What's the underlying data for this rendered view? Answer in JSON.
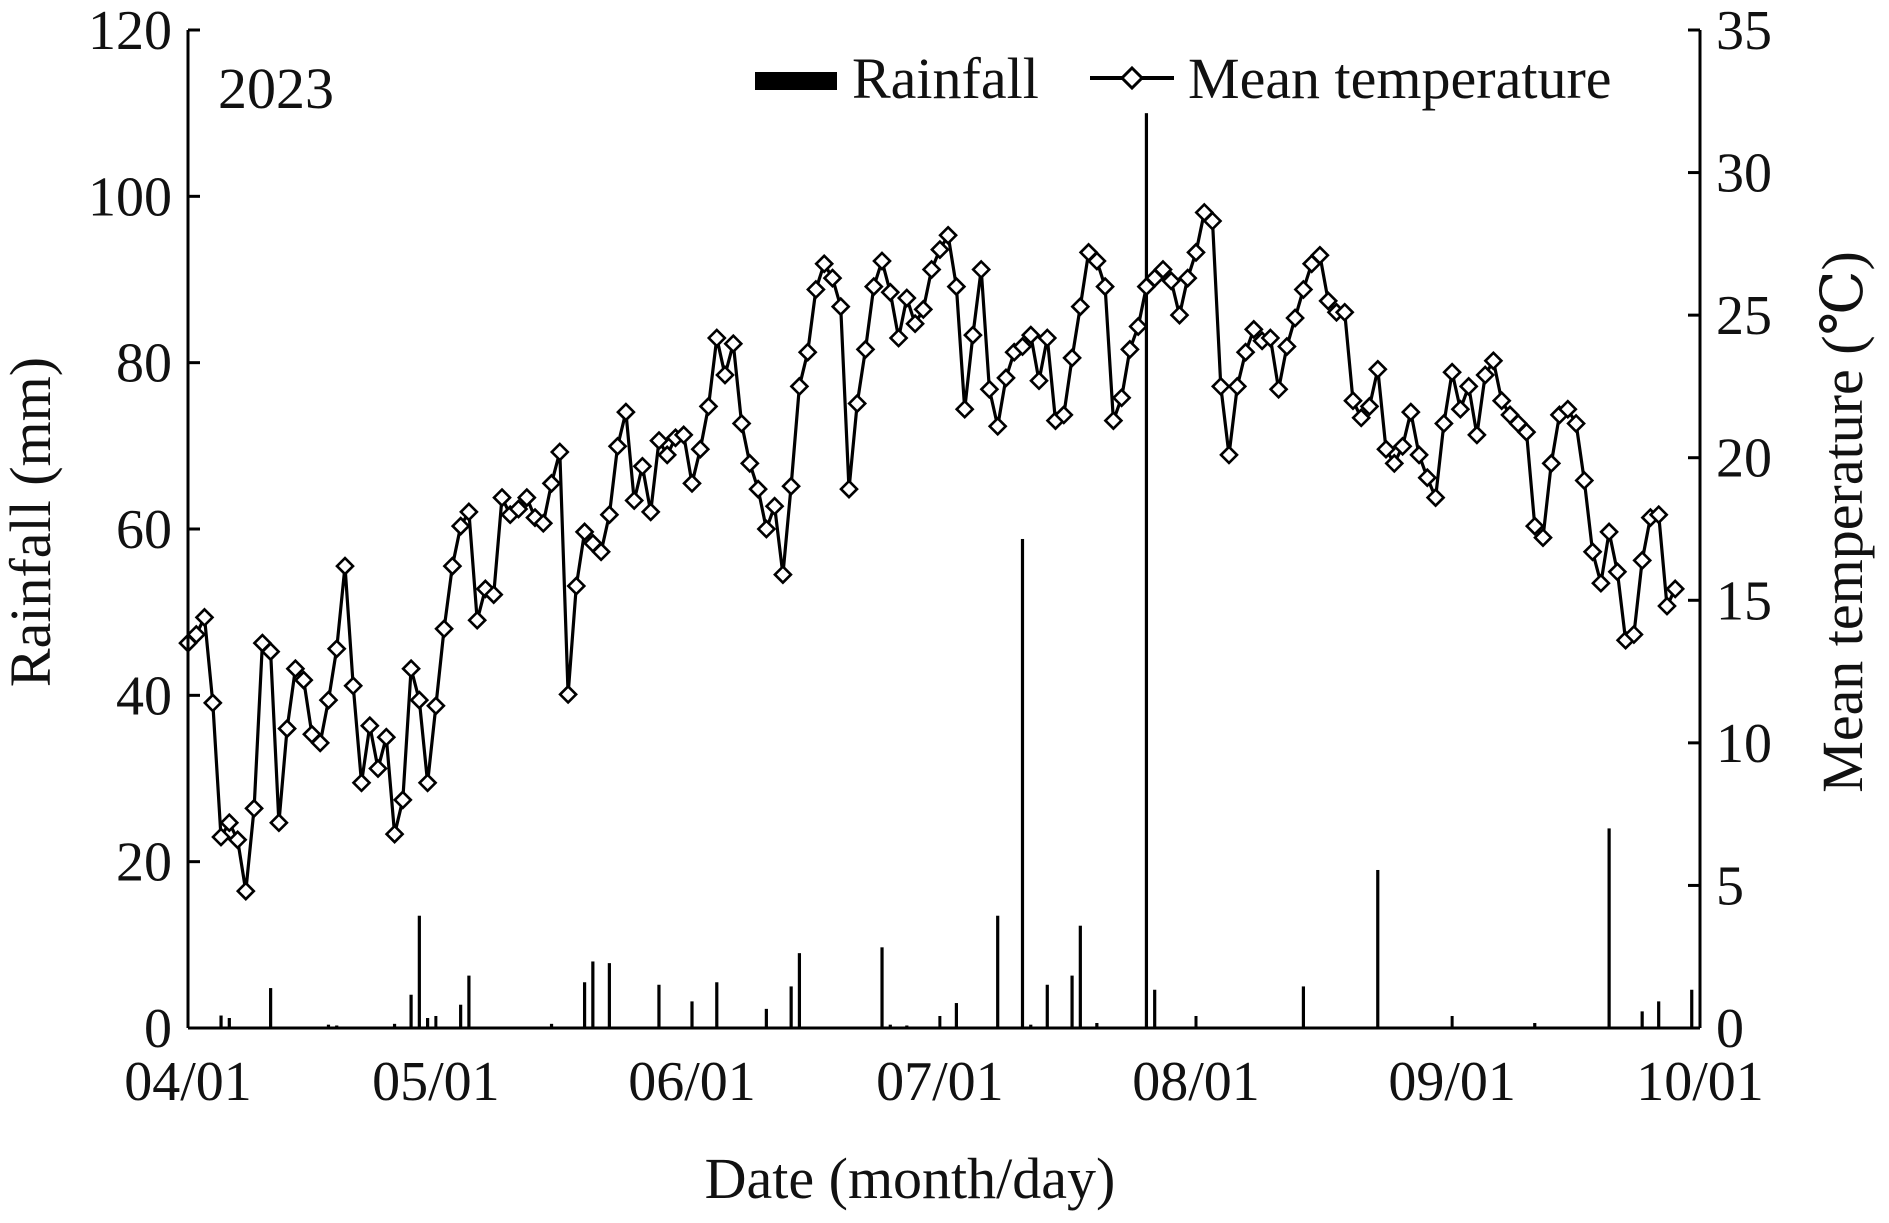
{
  "chart_data": {
    "type": "bar+line",
    "panel_label": "2023",
    "xlabel": "Date (month/day)",
    "ylabel_left": "Rainfall (mm)",
    "ylabel_right": "Mean temperature (℃)",
    "x_range": [
      "04/01",
      "10/01"
    ],
    "x_ticks": [
      "04/01",
      "05/01",
      "06/01",
      "07/01",
      "08/01",
      "09/01",
      "10/01"
    ],
    "ylim_left": [
      0,
      120
    ],
    "yticks_left": [
      0,
      20,
      40,
      60,
      80,
      100,
      120
    ],
    "ylim_right": [
      0,
      35
    ],
    "yticks_right": [
      0,
      5,
      10,
      15,
      20,
      25,
      30,
      35
    ],
    "grid": false,
    "legend_position": "top-right",
    "colors": {
      "bars": "#000000",
      "line": "#000000",
      "marker_fill": "#ffffff"
    },
    "legend": [
      {
        "label": "Rainfall",
        "symbol": "bar"
      },
      {
        "label": "Mean temperature",
        "symbol": "line-diamond"
      }
    ],
    "series": [
      {
        "name": "Rainfall",
        "axis": "left",
        "kind": "bar",
        "points": [
          [
            "04/05",
            1.5
          ],
          [
            "04/06",
            1.2
          ],
          [
            "04/11",
            4.8
          ],
          [
            "04/18",
            0.4
          ],
          [
            "04/19",
            0.3
          ],
          [
            "04/26",
            0.5
          ],
          [
            "04/28",
            4.0
          ],
          [
            "04/29",
            13.5
          ],
          [
            "04/30",
            1.2
          ],
          [
            "05/04",
            2.8
          ],
          [
            "05/05",
            6.3
          ],
          [
            "05/15",
            0.5
          ],
          [
            "05/19",
            5.5
          ],
          [
            "05/20",
            8.0
          ],
          [
            "05/22",
            7.8
          ],
          [
            "05/28",
            5.2
          ],
          [
            "06/01",
            3.2
          ],
          [
            "06/04",
            5.5
          ],
          [
            "06/10",
            2.3
          ],
          [
            "06/13",
            5.0
          ],
          [
            "06/14",
            9.0
          ],
          [
            "06/24",
            9.7
          ],
          [
            "06/25",
            0.4
          ],
          [
            "06/27",
            0.3
          ],
          [
            "07/03",
            3.0
          ],
          [
            "07/08",
            13.5
          ],
          [
            "07/11",
            58.8
          ],
          [
            "07/12",
            0.4
          ],
          [
            "07/14",
            5.2
          ],
          [
            "07/17",
            6.3
          ],
          [
            "07/18",
            12.3
          ],
          [
            "07/20",
            0.6
          ],
          [
            "07/26",
            110.0
          ],
          [
            "07/27",
            4.6
          ],
          [
            "08/14",
            5.0
          ],
          [
            "08/23",
            19.0
          ],
          [
            "09/11",
            0.6
          ],
          [
            "09/20",
            24.0
          ],
          [
            "09/24",
            2.0
          ],
          [
            "09/26",
            3.2
          ],
          [
            "09/30",
            4.6
          ]
        ]
      },
      {
        "name": "Mean temperature",
        "axis": "right",
        "kind": "line",
        "marker": "diamond",
        "values": [
          13.5,
          13.8,
          14.4,
          11.4,
          6.7,
          7.2,
          6.6,
          4.8,
          7.7,
          13.5,
          13.2,
          7.2,
          10.5,
          12.6,
          12.2,
          10.3,
          10.0,
          11.5,
          13.3,
          16.2,
          12.0,
          8.6,
          10.6,
          9.1,
          10.2,
          6.8,
          8.0,
          12.6,
          11.5,
          8.6,
          11.3,
          14.0,
          16.2,
          17.6,
          18.1,
          14.3,
          15.4,
          15.2,
          18.6,
          18.0,
          18.2,
          18.6,
          17.9,
          17.7,
          19.1,
          20.2,
          11.7,
          15.5,
          17.4,
          17.0,
          16.7,
          18.0,
          20.4,
          21.6,
          18.5,
          19.7,
          18.1,
          20.6,
          20.1,
          20.7,
          20.8,
          19.1,
          20.3,
          21.8,
          24.2,
          22.9,
          24.0,
          21.2,
          19.8,
          18.9,
          17.5,
          18.3,
          15.9,
          19.0,
          22.5,
          23.7,
          25.9,
          26.8,
          26.3,
          25.3,
          18.9,
          21.9,
          23.8,
          26.0,
          26.9,
          25.8,
          24.2,
          25.6,
          24.7,
          25.2,
          26.6,
          27.3,
          27.8,
          26.0,
          21.7,
          24.3,
          26.6,
          22.4,
          21.1,
          22.8,
          23.7,
          23.9,
          24.3,
          22.7,
          24.2,
          21.3,
          21.5,
          23.5,
          25.3,
          27.2,
          26.9,
          26.0,
          21.3,
          22.1,
          23.8,
          24.6,
          26.0,
          26.3,
          26.6,
          26.2,
          25.0,
          26.3,
          27.2,
          28.6,
          28.3,
          22.5,
          20.1,
          22.5,
          23.7,
          24.5,
          24.1,
          24.2,
          22.4,
          23.9,
          24.9,
          25.9,
          26.8,
          27.1,
          25.5,
          25.1,
          25.1,
          22.0,
          21.4,
          21.8,
          23.1,
          20.3,
          19.8,
          20.4,
          21.6,
          20.1,
          19.3,
          18.6,
          21.2,
          23.0,
          21.7,
          22.5,
          20.8,
          22.9,
          23.4,
          22.0,
          21.5,
          21.2,
          20.9,
          17.6,
          17.2,
          19.8,
          21.5,
          21.7,
          21.2,
          19.2,
          16.7,
          15.6,
          17.4,
          16.0,
          13.6,
          13.8,
          16.4,
          17.9,
          18.0,
          14.8,
          15.4
        ]
      }
    ]
  }
}
